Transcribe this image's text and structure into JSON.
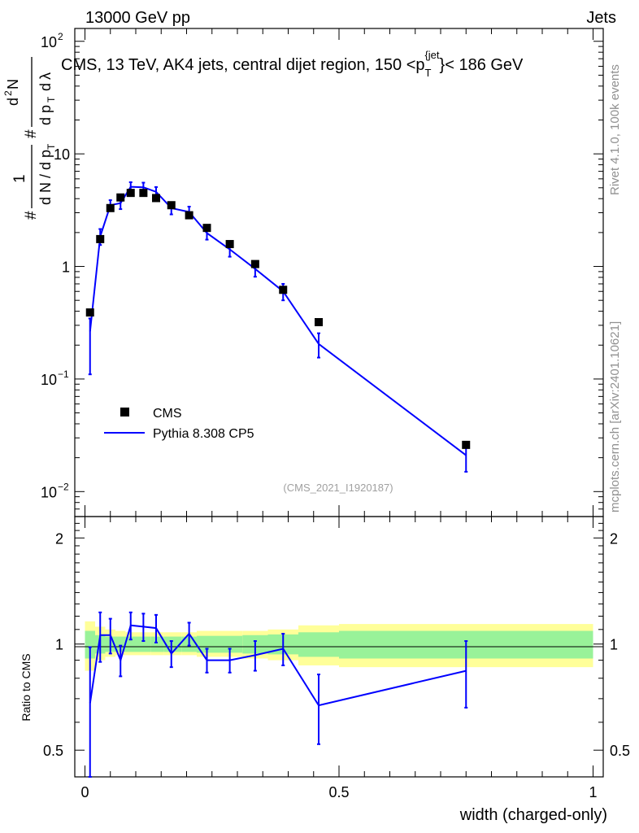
{
  "header": {
    "left": "13000 GeV pp",
    "right": "Jets"
  },
  "title": "CMS, 13 TeV, AK4 jets, central dijet region, 150 < p_T^{jet} < 186 GeV",
  "side_labels": {
    "rivet": "Rivet 4.1.0,  100k events",
    "mcplots": "mcplots.cern.ch [arXiv:2401.10621]"
  },
  "analysis_id": "(CMS_2021_I1920187)",
  "y_label_main": "1/(dN/dpT) d²N/(dpT dλ)",
  "y_label_ratio": "Ratio to CMS",
  "x_label": "width (charged-only)",
  "legend": [
    {
      "name": "CMS",
      "color": "#000000",
      "style": "square"
    },
    {
      "name": "Pythia 8.308 CP5",
      "color": "#0000ff",
      "style": "line"
    }
  ],
  "colors": {
    "mc": "#0000ff",
    "data": "#000000",
    "band_inner": "#99f299",
    "band_outer": "#ffff99"
  },
  "chart_data": [
    {
      "type": "scatter",
      "panel": "main",
      "title": "CMS, 13 TeV, AK4 jets, central dijet region, 150 < p_T^{jet} < 186 GeV",
      "xlabel": "width (charged-only)",
      "ylabel": "1/(dN/dpT) d²N/(dpT dλ)",
      "xlim": [
        -0.02,
        1.02
      ],
      "ylim": [
        0.006,
        130
      ],
      "yscale": "log",
      "x_ticks": [
        "0",
        "0.5",
        "1"
      ],
      "y_ticks": [
        "10^-2",
        "10^-1",
        "1",
        "10",
        "10^2"
      ],
      "series": [
        {
          "name": "CMS",
          "x": [
            0.01,
            0.03,
            0.05,
            0.07,
            0.09,
            0.115,
            0.14,
            0.17,
            0.205,
            0.24,
            0.285,
            0.335,
            0.39,
            0.46,
            0.75
          ],
          "y": [
            0.39,
            1.75,
            3.3,
            4.1,
            4.5,
            4.5,
            4.05,
            3.5,
            2.85,
            2.2,
            1.58,
            1.05,
            0.62,
            0.32,
            0.026
          ]
        },
        {
          "name": "Pythia 8.308 CP5",
          "x": [
            0.01,
            0.03,
            0.05,
            0.07,
            0.09,
            0.115,
            0.14,
            0.17,
            0.205,
            0.24,
            0.285,
            0.335,
            0.39,
            0.46,
            0.75
          ],
          "y": [
            0.265,
            1.85,
            3.5,
            3.65,
            5.1,
            5.05,
            4.6,
            3.3,
            3.05,
            1.98,
            1.42,
            0.95,
            0.6,
            0.205,
            0.021
          ],
          "err_lo": [
            0.155,
            0.3,
            0.38,
            0.42,
            0.5,
            0.5,
            0.47,
            0.4,
            0.35,
            0.25,
            0.2,
            0.14,
            0.1,
            0.05,
            0.006
          ],
          "err_hi": [
            0.08,
            0.3,
            0.38,
            0.42,
            0.5,
            0.5,
            0.47,
            0.4,
            0.35,
            0.25,
            0.2,
            0.14,
            0.1,
            0.05,
            0.006
          ]
        }
      ]
    },
    {
      "type": "line",
      "panel": "ratio",
      "xlabel": "width (charged-only)",
      "ylabel": "Ratio to CMS",
      "xlim": [
        -0.02,
        1.02
      ],
      "ylim": [
        0.42,
        2.3
      ],
      "yscale": "log",
      "y_ticks": [
        "0.5",
        "1",
        "2"
      ],
      "reference": 1.0,
      "band_edges": [
        0.0,
        0.02,
        0.04,
        0.06,
        0.08,
        0.1,
        0.13,
        0.155,
        0.19,
        0.22,
        0.26,
        0.31,
        0.36,
        0.42,
        0.5,
        1.0
      ],
      "band_inner": [
        [
          0.91,
          1.09
        ],
        [
          0.94,
          1.06
        ],
        [
          0.95,
          1.05
        ],
        [
          0.95,
          1.05
        ],
        [
          0.95,
          1.05
        ],
        [
          0.95,
          1.05
        ],
        [
          0.95,
          1.05
        ],
        [
          0.95,
          1.05
        ],
        [
          0.95,
          1.05
        ],
        [
          0.945,
          1.055
        ],
        [
          0.945,
          1.055
        ],
        [
          0.94,
          1.06
        ],
        [
          0.935,
          1.065
        ],
        [
          0.92,
          1.08
        ],
        [
          0.91,
          1.09
        ]
      ],
      "band_outer": [
        [
          0.84,
          1.16
        ],
        [
          0.9,
          1.12
        ],
        [
          0.92,
          1.1
        ],
        [
          0.93,
          1.09
        ],
        [
          0.93,
          1.08
        ],
        [
          0.93,
          1.08
        ],
        [
          0.93,
          1.08
        ],
        [
          0.93,
          1.08
        ],
        [
          0.93,
          1.08
        ],
        [
          0.92,
          1.09
        ],
        [
          0.92,
          1.09
        ],
        [
          0.91,
          1.09
        ],
        [
          0.9,
          1.1
        ],
        [
          0.87,
          1.13
        ],
        [
          0.86,
          1.14
        ]
      ],
      "series": [
        {
          "name": "Pythia 8.308 CP5 / CMS",
          "x": [
            0.01,
            0.03,
            0.05,
            0.07,
            0.09,
            0.115,
            0.14,
            0.17,
            0.205,
            0.24,
            0.285,
            0.335,
            0.39,
            0.46,
            0.75
          ],
          "y": [
            0.68,
            1.06,
            1.06,
            0.9,
            1.13,
            1.12,
            1.11,
            0.94,
            1.07,
            0.9,
            0.9,
            0.93,
            0.97,
            0.67,
            0.84
          ],
          "err": [
            0.3,
            0.17,
            0.12,
            0.09,
            0.1,
            0.1,
            0.1,
            0.08,
            0.08,
            0.07,
            0.07,
            0.09,
            0.1,
            0.15,
            0.18
          ]
        }
      ]
    }
  ]
}
